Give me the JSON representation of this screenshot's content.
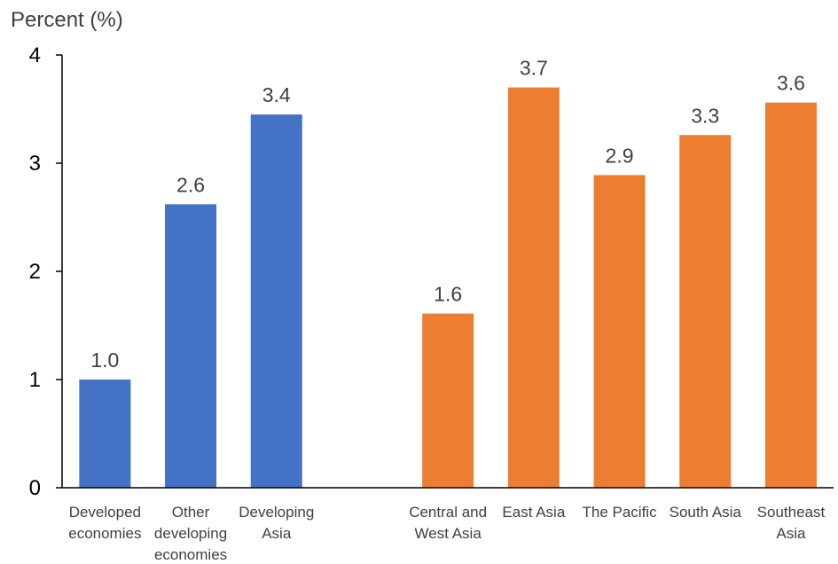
{
  "chart_data": {
    "type": "bar",
    "ylabel": "Percent (%)",
    "ylim": [
      0,
      4
    ],
    "yticks": [
      "0",
      "1",
      "2",
      "3",
      "4"
    ],
    "grid": false,
    "legend": "none",
    "categories": [
      [
        "Developed",
        "economies"
      ],
      [
        "Other",
        "developing",
        "economies"
      ],
      [
        "Developing",
        "Asia"
      ],
      [],
      [
        "Central and",
        "West Asia"
      ],
      [
        "East Asia"
      ],
      [
        "The Pacific"
      ],
      [
        "South Asia"
      ],
      [
        "Southeast",
        "Asia"
      ]
    ],
    "values": [
      1.0,
      2.62,
      3.45,
      null,
      1.61,
      3.7,
      2.89,
      3.26,
      3.56
    ],
    "value_labels": [
      "1.0",
      "2.6",
      "3.4",
      "",
      "1.6",
      "3.7",
      "2.9",
      "3.3",
      "3.6"
    ],
    "bar_colors": [
      "#4472c4",
      "#4472c4",
      "#4472c4",
      "",
      "#ed7d31",
      "#ed7d31",
      "#ed7d31",
      "#ed7d31",
      "#ed7d31"
    ],
    "axis_color": "#000000"
  }
}
